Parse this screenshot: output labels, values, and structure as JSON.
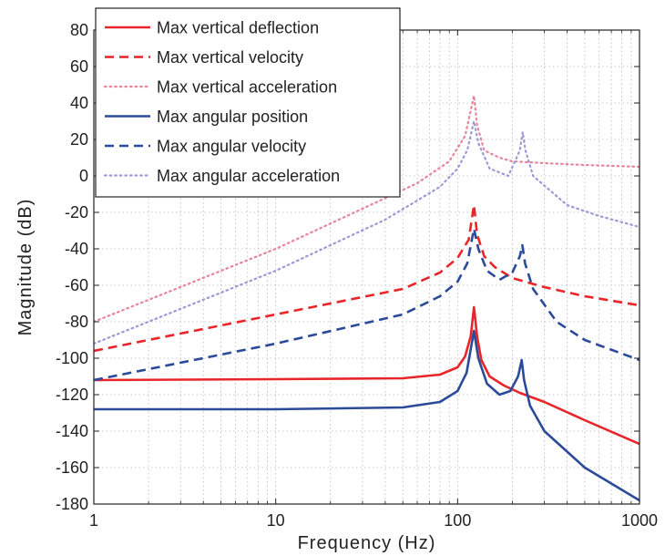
{
  "chart_data": {
    "type": "line",
    "title": "",
    "xlabel": "Frequency (Hz)",
    "ylabel": "Magnitude (dB)",
    "xscale": "log",
    "xlim": [
      1,
      1000
    ],
    "ylim": [
      -180,
      80
    ],
    "xticks": [
      1,
      10,
      100,
      1000
    ],
    "xtick_labels": [
      "1",
      "10",
      "100",
      "1000"
    ],
    "yticks": [
      -180,
      -160,
      -140,
      -120,
      -100,
      -80,
      -60,
      -40,
      -20,
      0,
      20,
      40,
      60,
      80
    ],
    "ytick_labels": [
      "-180",
      "-160",
      "-140",
      "-120",
      "-100",
      "-80",
      "-60",
      "-40",
      "-20",
      "0",
      "20",
      "40",
      "60",
      "80"
    ],
    "grid": true,
    "legend_position": "top-left",
    "series": [
      {
        "name": "Max vertical deflection",
        "color": "#e8262a",
        "style": "solid",
        "points": [
          [
            1,
            -112
          ],
          [
            10,
            -111.5
          ],
          [
            50,
            -111
          ],
          [
            80,
            -109
          ],
          [
            100,
            -105
          ],
          [
            110,
            -99
          ],
          [
            118,
            -88
          ],
          [
            123,
            -72
          ],
          [
            128,
            -88
          ],
          [
            135,
            -101
          ],
          [
            150,
            -110
          ],
          [
            180,
            -115
          ],
          [
            220,
            -119
          ],
          [
            300,
            -124
          ],
          [
            500,
            -134
          ],
          [
            1000,
            -147
          ]
        ]
      },
      {
        "name": "Max vertical velocity",
        "color": "#e8262a",
        "style": "dashed",
        "points": [
          [
            1,
            -96
          ],
          [
            10,
            -76
          ],
          [
            50,
            -62
          ],
          [
            80,
            -53
          ],
          [
            100,
            -45
          ],
          [
            115,
            -35
          ],
          [
            123,
            -16
          ],
          [
            128,
            -32
          ],
          [
            140,
            -44
          ],
          [
            160,
            -50
          ],
          [
            200,
            -56
          ],
          [
            300,
            -61
          ],
          [
            500,
            -66
          ],
          [
            1000,
            -71
          ]
        ]
      },
      {
        "name": "Max vertical acceleration",
        "color": "#e8849a",
        "style": "dotted",
        "points": [
          [
            1,
            -80
          ],
          [
            10,
            -40
          ],
          [
            30,
            -18
          ],
          [
            60,
            -4
          ],
          [
            90,
            8
          ],
          [
            110,
            22
          ],
          [
            123,
            44
          ],
          [
            128,
            28
          ],
          [
            140,
            14
          ],
          [
            170,
            10
          ],
          [
            200,
            8
          ],
          [
            300,
            7
          ],
          [
            500,
            6
          ],
          [
            1000,
            5
          ]
        ]
      },
      {
        "name": "Max angular position",
        "color": "#2c4a9a",
        "style": "solid",
        "points": [
          [
            1,
            -128
          ],
          [
            10,
            -128
          ],
          [
            50,
            -127
          ],
          [
            80,
            -124
          ],
          [
            100,
            -118
          ],
          [
            112,
            -108
          ],
          [
            123,
            -85
          ],
          [
            130,
            -100
          ],
          [
            145,
            -114
          ],
          [
            170,
            -120
          ],
          [
            195,
            -118
          ],
          [
            215,
            -110
          ],
          [
            225,
            -101
          ],
          [
            232,
            -112
          ],
          [
            250,
            -126
          ],
          [
            300,
            -140
          ],
          [
            500,
            -160
          ],
          [
            1000,
            -178
          ]
        ]
      },
      {
        "name": "Max angular velocity",
        "color": "#2c4a9a",
        "style": "dashed",
        "points": [
          [
            1,
            -112
          ],
          [
            10,
            -92
          ],
          [
            50,
            -76
          ],
          [
            80,
            -66
          ],
          [
            100,
            -58
          ],
          [
            113,
            -48
          ],
          [
            123,
            -29
          ],
          [
            130,
            -40
          ],
          [
            145,
            -52
          ],
          [
            170,
            -57
          ],
          [
            200,
            -53
          ],
          [
            220,
            -44
          ],
          [
            227,
            -38
          ],
          [
            235,
            -48
          ],
          [
            260,
            -62
          ],
          [
            350,
            -80
          ],
          [
            500,
            -90
          ],
          [
            1000,
            -101
          ]
        ]
      },
      {
        "name": "Max angular acceleration",
        "color": "#9a9ad6",
        "style": "dotted",
        "points": [
          [
            1,
            -92
          ],
          [
            10,
            -52
          ],
          [
            40,
            -24
          ],
          [
            80,
            -6
          ],
          [
            100,
            4
          ],
          [
            113,
            14
          ],
          [
            123,
            30
          ],
          [
            130,
            18
          ],
          [
            150,
            4
          ],
          [
            190,
            0
          ],
          [
            220,
            14
          ],
          [
            228,
            24
          ],
          [
            236,
            14
          ],
          [
            260,
            0
          ],
          [
            400,
            -16
          ],
          [
            600,
            -22
          ],
          [
            1000,
            -28
          ]
        ]
      }
    ]
  }
}
